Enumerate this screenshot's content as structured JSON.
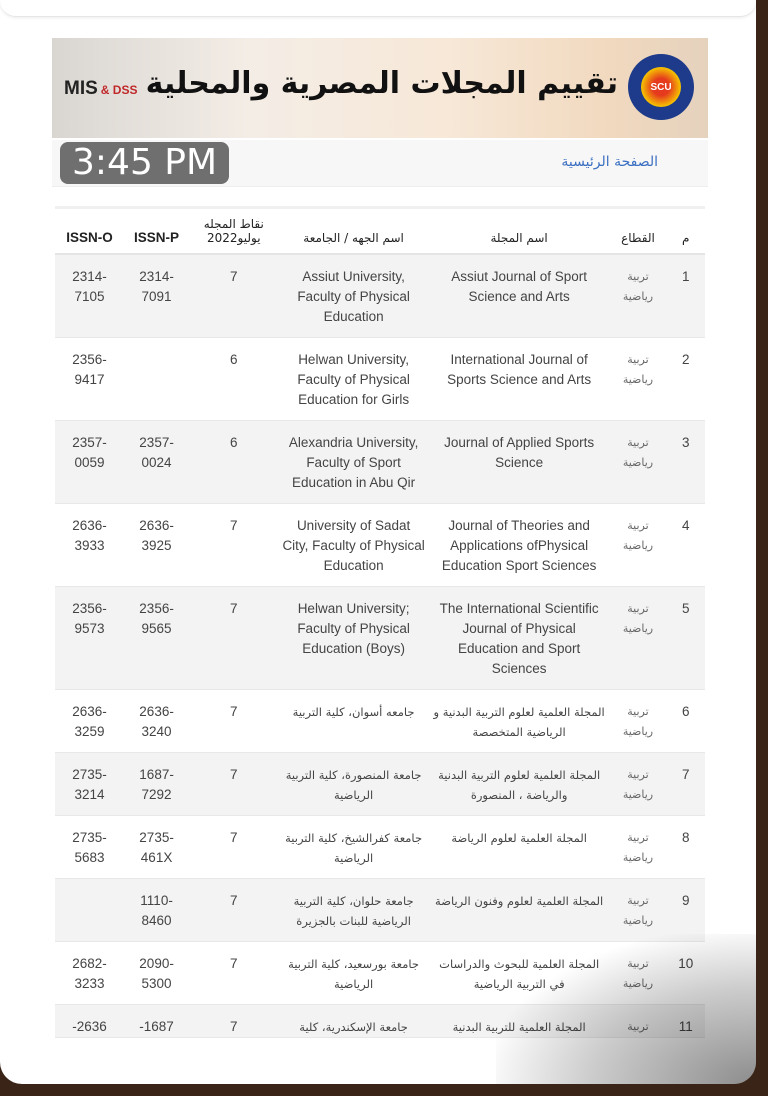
{
  "header": {
    "title": "تقييم المجلات المصرية والمحلية",
    "logo_left": "MIS",
    "logo_left_suffix": "& DSS",
    "logo_right": "SCU"
  },
  "breadcrumb": {
    "home": "الصفحة الرئيسية"
  },
  "table": {
    "columns": [
      "م",
      "القطاع",
      "اسم المجلة",
      "اسم الجهه / الجامعة",
      "نقاط المجله يوليو2022",
      "ISSN-P",
      "ISSN-O"
    ],
    "rows": [
      {
        "n": "1",
        "sector": "تربية رياضية",
        "journal": "Assiut Journal of Sport Science and Arts",
        "university": "Assiut University, Faculty of Physical Education",
        "points": "7",
        "issn_p": "2314-7091",
        "issn_o": "2314-7105"
      },
      {
        "n": "2",
        "sector": "تربية رياضية",
        "journal": "International Journal of Sports Science and Arts",
        "university": "Helwan University, Faculty of Physical Education for Girls",
        "points": "6",
        "issn_p": "",
        "issn_o": "2356-9417"
      },
      {
        "n": "3",
        "sector": "تربية رياضية",
        "journal": "Journal of Applied Sports Science",
        "university": "Alexandria University, Faculty of Sport Education in Abu Qir",
        "points": "6",
        "issn_p": "2357-0024",
        "issn_o": "2357-0059"
      },
      {
        "n": "4",
        "sector": "تربية رياضية",
        "journal": "Journal of Theories and Applications ofPhysical Education Sport Sciences",
        "university": "University of Sadat City, Faculty of Physical Education",
        "points": "7",
        "issn_p": "2636-3925",
        "issn_o": "2636-3933"
      },
      {
        "n": "5",
        "sector": "تربية رياضية",
        "journal": "The International Scientific Journal of Physical Education and Sport Sciences",
        "university": "Helwan University; Faculty of Physical Education (Boys)",
        "points": "7",
        "issn_p": "2356-9565",
        "issn_o": "2356-9573"
      },
      {
        "n": "6",
        "sector": "تربية رياضية",
        "journal": "المجلة العلمية لعلوم التربية البدنية و الرياضية المتخصصة",
        "university": "جامعه أسوان، كلية التربية",
        "points": "7",
        "issn_p": "2636-3240",
        "issn_o": "2636-3259"
      },
      {
        "n": "7",
        "sector": "تربية رياضية",
        "journal": "المجلة العلمية لعلوم التربية البدنية والرياضة ، المنصورة",
        "university": "جامعة المنصورة، كلية التربية الرياضية",
        "points": "7",
        "issn_p": "1687-7292",
        "issn_o": "2735-3214"
      },
      {
        "n": "8",
        "sector": "تربية رياضية",
        "journal": "المجلة العلمية لعلوم الرياضة",
        "university": "جامعة كفرالشيخ، كلية التربية الرياضية",
        "points": "7",
        "issn_p": "2735-461X",
        "issn_o": "2735-5683"
      },
      {
        "n": "9",
        "sector": "تربية رياضية",
        "journal": "المجلة العلمية لعلوم وفنون الرياضة",
        "university": "جامعة حلوان، كلية التربية الرياضية للبنات بالجزيرة",
        "points": "7",
        "issn_p": "1110-8460",
        "issn_o": ""
      },
      {
        "n": "10",
        "sector": "تربية رياضية",
        "journal": "المجلة العلمية للبحوث والدراسات في التربية الرياضية",
        "university": "جامعة بورسعيد، كلية التربية الرياضية",
        "points": "7",
        "issn_p": "2090-5300",
        "issn_o": "2682-3233"
      },
      {
        "n": "11",
        "sector": "تربية",
        "journal": "المجلة العلمية للتربية البدنية",
        "university": "جامعة الإسكندرية، كلية",
        "points": "7",
        "issn_p": "1687-",
        "issn_o": "2636-"
      }
    ]
  },
  "status": {
    "time": "3:45 PM"
  }
}
